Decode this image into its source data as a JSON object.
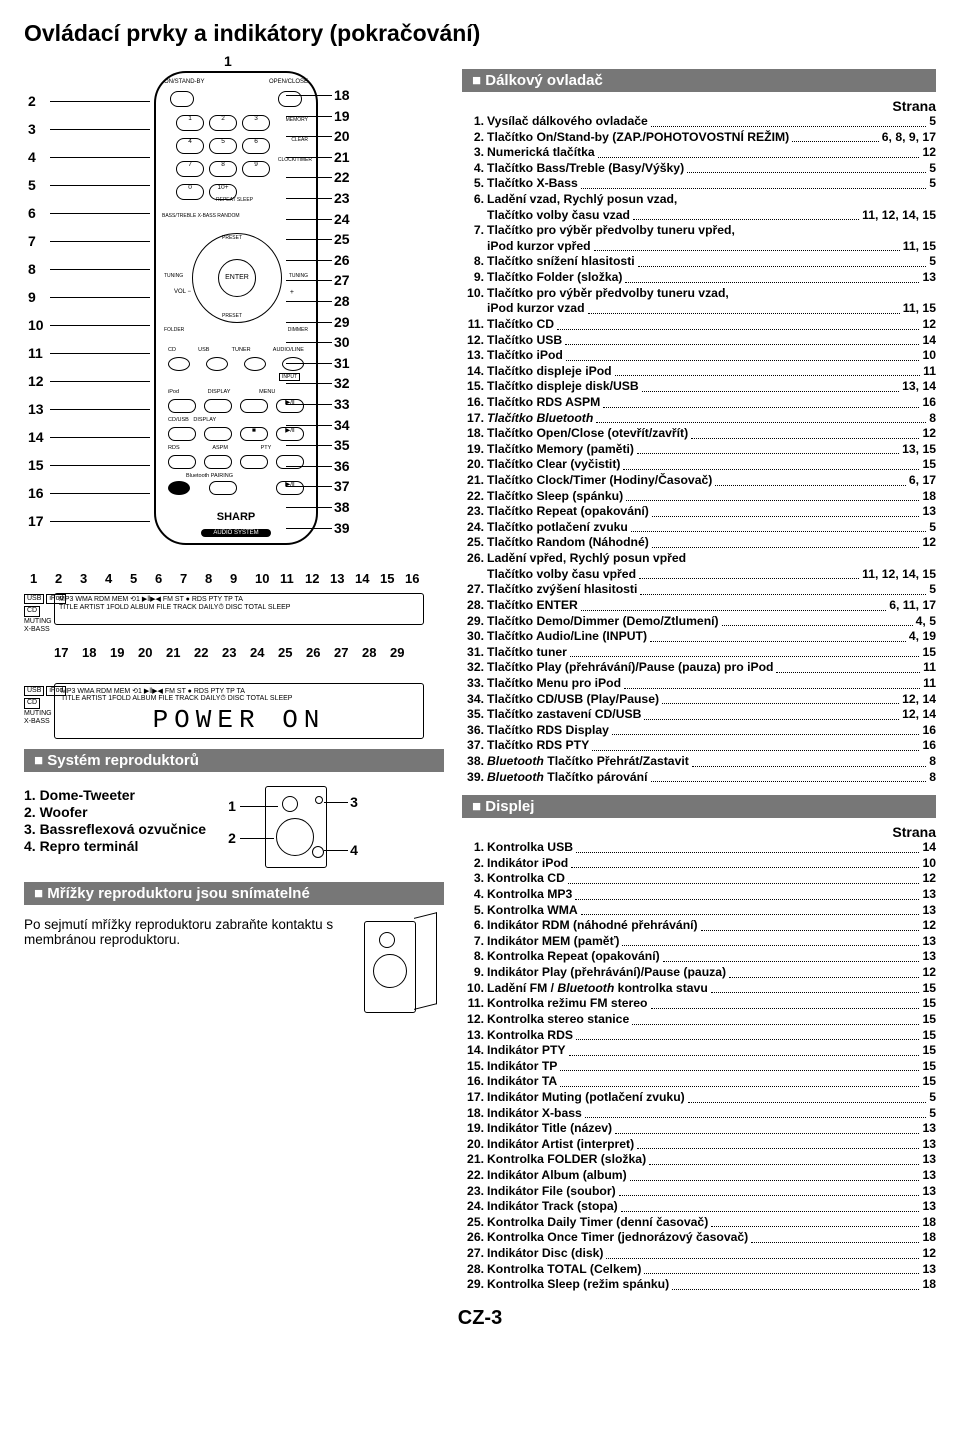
{
  "page_title": "Ovládací prvky a indikátory (pokračování)",
  "page_code": "CZ-3",
  "strana_label": "Strana",
  "remote_diagram": {
    "brand": "SHARP",
    "brand_sub": "AUDIO SYSTEM",
    "left_callouts": [
      "2",
      "3",
      "4",
      "5",
      "6",
      "7",
      "8",
      "9",
      "10",
      "11",
      "12",
      "13",
      "14",
      "15",
      "16",
      "17"
    ],
    "right_callouts": [
      "18",
      "19",
      "20",
      "21",
      "22",
      "23",
      "24",
      "25",
      "26",
      "27",
      "28",
      "29",
      "30",
      "31",
      "32",
      "33",
      "34",
      "35",
      "36",
      "37",
      "38",
      "39"
    ],
    "top_callout": "1",
    "labels": [
      "ON/STAND-BY",
      "OPEN/CLOSE",
      "MEMORY",
      "CLEAR",
      "CLOCK/TIMER",
      "REPEAT",
      "SLEEP",
      "BASS/TREBLE",
      "X-BASS",
      "RANDOM",
      "PRESET",
      "TUNING",
      "VOL",
      "ENTER",
      "FOLDER",
      "DIMMER",
      "CD",
      "USB",
      "TUNER",
      "AUDIO/LINE",
      "iPod",
      "DISPLAY",
      "MENU",
      "CD/USB",
      "DISPLAY",
      "RDS ASPM",
      "RDS PTY",
      "Bluetooth",
      "PAIRING"
    ]
  },
  "display_diagram": {
    "top_numbers": [
      "1",
      "2",
      "3",
      "4",
      "5",
      "6",
      "7",
      "8",
      "9",
      "10",
      "11",
      "12",
      "13",
      "14",
      "15",
      "16"
    ],
    "bottom_numbers": [
      "17",
      "18",
      "19",
      "20",
      "21",
      "22",
      "23",
      "24",
      "25",
      "26",
      "27",
      "28",
      "29"
    ],
    "side_tags": [
      "USB",
      "iPod",
      "CD",
      "MUTING",
      "X-BASS"
    ],
    "panel_row1": "MP3 WMA     RDM MEM ⟲1   ▶‖▶◀ FM ST ● RDS PTY TP TA",
    "panel_row2": "TITLE ARTIST 1FOLD  ALBUM   FILE TRACK DAILY⏱   DISC TOTAL SLEEP",
    "lcd_text": "POWER ON"
  },
  "sections": {
    "remote": {
      "heading": "Dálkový ovladač"
    },
    "display": {
      "heading": "Displej"
    },
    "speakers": {
      "heading": "Systém reproduktorů"
    },
    "grilles": {
      "heading": "Mřížky reproduktoru jsou snímatelné"
    }
  },
  "speaker_list": [
    "1.  Dome-Tweeter",
    "2.  Woofer",
    "3.  Bassreflexová ozvučnice",
    "4.  Repro terminál"
  ],
  "speaker_callouts": [
    "1",
    "2",
    "3",
    "4"
  ],
  "grille_text": "Po sejmutí mřížky reproduktoru zabraňte kontaktu s membránou reproduktoru.",
  "remote_refs": [
    {
      "n": "1.",
      "t": "Vysílač dálkového ovladače",
      "p": "5"
    },
    {
      "n": "2.",
      "t": "Tlačítko On/Stand-by (ZAP./POHOTOVOSTNÍ REŽIM)",
      "p": "6, 8, 9, 17"
    },
    {
      "n": "3.",
      "t": "Numerická tlačítka",
      "p": "12"
    },
    {
      "n": "4.",
      "t": "Tlačítko Bass/Treble (Basy/Výšky)",
      "p": "5"
    },
    {
      "n": "5.",
      "t": "Tlačítko X-Bass",
      "p": "5"
    },
    {
      "n": "6.",
      "t": "Ladění vzad, Rychlý posun vzad,",
      "p": ""
    },
    {
      "n": "",
      "t": "Tlačítko volby času vzad",
      "p": "11, 12, 14, 15",
      "cont": true
    },
    {
      "n": "7.",
      "t": "Tlačítko pro výběr předvolby tuneru vpřed,",
      "p": ""
    },
    {
      "n": "",
      "t": "iPod kurzor vpřed",
      "p": "11, 15",
      "cont": true
    },
    {
      "n": "8.",
      "t": "Tlačítko snížení hlasitosti",
      "p": "5"
    },
    {
      "n": "9.",
      "t": "Tlačítko Folder (složka)",
      "p": "13"
    },
    {
      "n": "10.",
      "t": "Tlačítko pro výběr předvolby tuneru vzad,",
      "p": ""
    },
    {
      "n": "",
      "t": "iPod kurzor vzad",
      "p": "11, 15",
      "cont": true
    },
    {
      "n": "11.",
      "t": "Tlačítko CD",
      "p": "12"
    },
    {
      "n": "12.",
      "t": "Tlačítko USB",
      "p": "14"
    },
    {
      "n": "13.",
      "t": "Tlačítko iPod",
      "p": "10"
    },
    {
      "n": "14.",
      "t": "Tlačítko displeje iPod",
      "p": "11"
    },
    {
      "n": "15.",
      "t": "Tlačítko displeje disk/USB",
      "p": "13, 14"
    },
    {
      "n": "16.",
      "t": "Tlačítko RDS ASPM",
      "p": "16"
    },
    {
      "n": "17.",
      "t": " Tlačítko Bluetooth",
      "p": "8",
      "italic": true
    },
    {
      "n": "18.",
      "t": "Tlačítko Open/Close (otevřít/zavřít)",
      "p": "12"
    },
    {
      "n": "19.",
      "t": "Tlačítko Memory (paměti)",
      "p": "13, 15"
    },
    {
      "n": "20.",
      "t": "Tlačítko Clear (vyčistit)",
      "p": "15"
    },
    {
      "n": "21.",
      "t": "Tlačítko Clock/Timer (Hodiny/Časovač)",
      "p": "6, 17"
    },
    {
      "n": "22.",
      "t": "Tlačítko Sleep (spánku)",
      "p": "18"
    },
    {
      "n": "23.",
      "t": "Tlačítko Repeat (opakování)",
      "p": "13"
    },
    {
      "n": "24.",
      "t": "Tlačítko potlačení zvuku",
      "p": "5"
    },
    {
      "n": "25.",
      "t": "Tlačítko Random (Náhodné)",
      "p": "12"
    },
    {
      "n": "26.",
      "t": "Ladění vpřed, Rychlý posun vpřed",
      "p": ""
    },
    {
      "n": "",
      "t": "Tlačítko volby času vpřed",
      "p": "11, 12, 14, 15",
      "cont": true
    },
    {
      "n": "27.",
      "t": "Tlačítko zvýšení hlasitosti",
      "p": "5"
    },
    {
      "n": "28.",
      "t": "Tlačítko ENTER",
      "p": "6, 11, 17"
    },
    {
      "n": "29.",
      "t": "Tlačítko Demo/Dimmer (Demo/Ztlumení)",
      "p": "4, 5"
    },
    {
      "n": "30.",
      "t": "Tlačítko Audio/Line (INPUT)",
      "p": "4, 19"
    },
    {
      "n": "31.",
      "t": "Tlačítko tuner",
      "p": "15"
    },
    {
      "n": "32.",
      "t": "Tlačítko Play (přehrávání)/Pause (pauza) pro iPod",
      "p": "11"
    },
    {
      "n": "33.",
      "t": "Tlačítko Menu pro iPod",
      "p": "11"
    },
    {
      "n": "34.",
      "t": "Tlačítko CD/USB (Play/Pause)",
      "p": "12, 14"
    },
    {
      "n": "35.",
      "t": "Tlačítko zastavení CD/USB",
      "p": "12, 14"
    },
    {
      "n": "36.",
      "t": "Tlačítko RDS Display",
      "p": "16"
    },
    {
      "n": "37.",
      "t": "Tlačítko RDS PTY",
      "p": "16"
    },
    {
      "n": "38.",
      "t": "Bluetooth Tlačítko Přehrát/Zastavit",
      "p": "8",
      "italic_prefix": "Bluetooth "
    },
    {
      "n": "39.",
      "t": "Bluetooth Tlačítko párování",
      "p": "8",
      "italic_prefix": "Bluetooth "
    }
  ],
  "display_refs": [
    {
      "n": "1.",
      "t": "Kontrolka USB",
      "p": "14"
    },
    {
      "n": "2.",
      "t": "Indikátor iPod",
      "p": "10"
    },
    {
      "n": "3.",
      "t": "Kontrolka CD",
      "p": "12"
    },
    {
      "n": "4.",
      "t": "Kontrolka MP3",
      "p": "13"
    },
    {
      "n": "5.",
      "t": "Kontrolka WMA",
      "p": "13"
    },
    {
      "n": "6.",
      "t": "Indikátor RDM (náhodné přehrávání)",
      "p": "12"
    },
    {
      "n": "7.",
      "t": "Indikátor MEM (paměť)",
      "p": "13"
    },
    {
      "n": "8.",
      "t": "Kontrolka Repeat (opakování)",
      "p": "13"
    },
    {
      "n": "9.",
      "t": "Indikátor Play (přehrávání)/Pause (pauza)",
      "p": "12"
    },
    {
      "n": "10.",
      "t": "Ladění FM / Bluetooth kontrolka stavu",
      "p": "15",
      "italic_word": "Bluetooth"
    },
    {
      "n": "11.",
      "t": "Kontrolka režimu FM stereo",
      "p": "15"
    },
    {
      "n": "12.",
      "t": "Kontrolka stereo stanice",
      "p": "15"
    },
    {
      "n": "13.",
      "t": "Kontrolka RDS",
      "p": "15"
    },
    {
      "n": "14.",
      "t": "Indikátor PTY",
      "p": "15"
    },
    {
      "n": "15.",
      "t": "Indikátor TP",
      "p": "15"
    },
    {
      "n": "16.",
      "t": "Indikátor TA",
      "p": "15"
    },
    {
      "n": "17.",
      "t": "Indikátor Muting (potlačení zvuku)",
      "p": "5"
    },
    {
      "n": "18.",
      "t": "Indikátor X-bass",
      "p": "5"
    },
    {
      "n": "19.",
      "t": "Indikátor Title (název)",
      "p": "13"
    },
    {
      "n": "20.",
      "t": "Indikátor Artist (interpret)",
      "p": "13"
    },
    {
      "n": "21.",
      "t": "Kontrolka FOLDER (složka)",
      "p": "13"
    },
    {
      "n": "22.",
      "t": "Indikátor Album (album)",
      "p": "13"
    },
    {
      "n": "23.",
      "t": "Indikátor File (soubor)",
      "p": "13"
    },
    {
      "n": "24.",
      "t": "Indikátor Track (stopa)",
      "p": "13"
    },
    {
      "n": "25.",
      "t": "Kontrolka Daily Timer (denní časovač)",
      "p": "18"
    },
    {
      "n": "26.",
      "t": "Kontrolka Once Timer (jednorázový časovač)",
      "p": "18"
    },
    {
      "n": "27.",
      "t": "Indikátor Disc (disk)",
      "p": "12"
    },
    {
      "n": "28.",
      "t": "Kontrolka TOTAL (Celkem)",
      "p": "13"
    },
    {
      "n": "29.",
      "t": "Kontrolka Sleep (režim spánku)",
      "p": "18"
    }
  ]
}
